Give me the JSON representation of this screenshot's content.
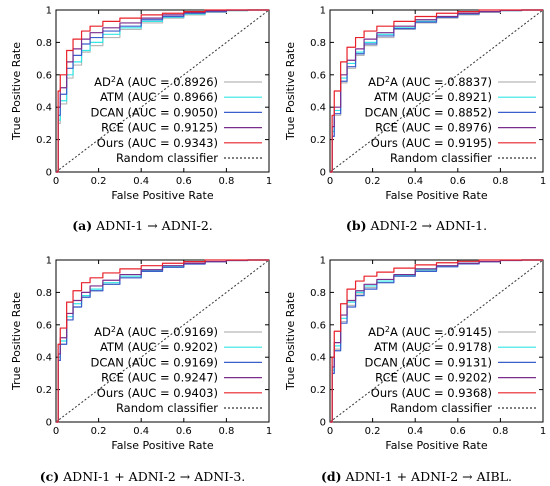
{
  "colors": {
    "AD2A": "#b8b8b8",
    "ATM": "#33e6e6",
    "DCAN": "#3a5fcd",
    "RCE": "#7b2d8b",
    "Ours": "#e8202a",
    "Random classifier": "#333333"
  },
  "chart_data": [
    {
      "type": "line",
      "xlabel": "False Positive Rate",
      "ylabel": "True Positive Rate",
      "xlim": [
        0,
        1
      ],
      "ylim": [
        0,
        1
      ],
      "xticks": [
        "0",
        "0.2",
        "0.4",
        "0.6",
        "0.8",
        "1"
      ],
      "yticks": [
        "0",
        "0.2",
        "0.4",
        "0.6",
        "0.8",
        "1"
      ],
      "caption_label": "(a)",
      "caption_text": "ADNI-1 → ADNI-2.",
      "legend": [
        "AD2A (AUC = 0.8926)",
        "ATM (AUC = 0.8966)",
        "DCAN (AUC = 0.9050)",
        "RCE (AUC = 0.9125)",
        "Ours (AUC = 0.9343)",
        "Random classifier"
      ],
      "series": [
        {
          "name": "AD2A",
          "x": [
            0,
            0.01,
            0.02,
            0.05,
            0.08,
            0.12,
            0.16,
            0.22,
            0.3,
            0.4,
            0.5,
            0.6,
            0.7,
            0.8,
            0.9,
            1
          ],
          "y": [
            0,
            0.3,
            0.42,
            0.58,
            0.66,
            0.74,
            0.78,
            0.83,
            0.88,
            0.92,
            0.95,
            0.97,
            0.985,
            0.995,
            1,
            1
          ]
        },
        {
          "name": "ATM",
          "x": [
            0,
            0.01,
            0.02,
            0.05,
            0.08,
            0.12,
            0.16,
            0.22,
            0.3,
            0.4,
            0.5,
            0.6,
            0.7,
            0.8,
            0.9,
            1
          ],
          "y": [
            0,
            0.32,
            0.44,
            0.6,
            0.68,
            0.75,
            0.8,
            0.85,
            0.89,
            0.93,
            0.955,
            0.975,
            0.99,
            0.997,
            1,
            1
          ]
        },
        {
          "name": "DCAN",
          "x": [
            0,
            0.01,
            0.02,
            0.05,
            0.08,
            0.12,
            0.16,
            0.22,
            0.3,
            0.4,
            0.5,
            0.6,
            0.7,
            0.8,
            0.9,
            1
          ],
          "y": [
            0,
            0.35,
            0.48,
            0.64,
            0.72,
            0.79,
            0.83,
            0.87,
            0.9,
            0.94,
            0.96,
            0.98,
            0.99,
            0.998,
            1,
            1
          ]
        },
        {
          "name": "RCE",
          "x": [
            0,
            0.01,
            0.02,
            0.05,
            0.08,
            0.12,
            0.16,
            0.22,
            0.3,
            0.4,
            0.5,
            0.6,
            0.7,
            0.8,
            0.9,
            1
          ],
          "y": [
            0,
            0.4,
            0.52,
            0.68,
            0.76,
            0.82,
            0.86,
            0.89,
            0.92,
            0.95,
            0.97,
            0.985,
            0.995,
            1,
            1,
            1
          ]
        },
        {
          "name": "Ours",
          "x": [
            0,
            0.01,
            0.02,
            0.05,
            0.08,
            0.12,
            0.16,
            0.22,
            0.3,
            0.4,
            0.5,
            0.6,
            0.7,
            0.8,
            0.9,
            1
          ],
          "y": [
            0,
            0.5,
            0.6,
            0.75,
            0.82,
            0.87,
            0.9,
            0.93,
            0.95,
            0.97,
            0.98,
            0.99,
            1,
            1,
            1,
            1
          ]
        }
      ]
    },
    {
      "type": "line",
      "xlabel": "False Positive Rate",
      "ylabel": "True Positive Rate",
      "xlim": [
        0,
        1
      ],
      "ylim": [
        0,
        1
      ],
      "xticks": [
        "0",
        "0.2",
        "0.4",
        "0.6",
        "0.8",
        "1"
      ],
      "yticks": [
        "0",
        "0.2",
        "0.4",
        "0.6",
        "0.8",
        "1"
      ],
      "caption_label": "(b)",
      "caption_text": "ADNI-2 → ADNI-1.",
      "legend": [
        "AD2A (AUC = 0.8837)",
        "ATM (AUC = 0.8921)",
        "DCAN (AUC = 0.8852)",
        "RCE (AUC = 0.8976)",
        "Ours (AUC = 0.9195)",
        "Random classifier"
      ],
      "series": [
        {
          "name": "AD2A",
          "x": [
            0,
            0.01,
            0.02,
            0.05,
            0.08,
            0.12,
            0.16,
            0.22,
            0.3,
            0.4,
            0.5,
            0.6,
            0.7,
            0.8,
            0.9,
            1
          ],
          "y": [
            0,
            0.22,
            0.35,
            0.55,
            0.64,
            0.72,
            0.78,
            0.83,
            0.88,
            0.92,
            0.95,
            0.97,
            0.985,
            0.995,
            1,
            1
          ]
        },
        {
          "name": "ATM",
          "x": [
            0,
            0.01,
            0.02,
            0.05,
            0.08,
            0.12,
            0.16,
            0.22,
            0.3,
            0.4,
            0.5,
            0.6,
            0.7,
            0.8,
            0.9,
            1
          ],
          "y": [
            0,
            0.25,
            0.38,
            0.58,
            0.67,
            0.74,
            0.8,
            0.85,
            0.89,
            0.93,
            0.955,
            0.975,
            0.99,
            0.997,
            1,
            1
          ]
        },
        {
          "name": "DCAN",
          "x": [
            0,
            0.01,
            0.02,
            0.05,
            0.08,
            0.12,
            0.16,
            0.22,
            0.3,
            0.4,
            0.5,
            0.6,
            0.7,
            0.8,
            0.9,
            1
          ],
          "y": [
            0,
            0.22,
            0.36,
            0.56,
            0.65,
            0.73,
            0.79,
            0.84,
            0.885,
            0.925,
            0.955,
            0.975,
            0.99,
            0.997,
            1,
            1
          ]
        },
        {
          "name": "RCE",
          "x": [
            0,
            0.01,
            0.02,
            0.05,
            0.08,
            0.12,
            0.16,
            0.22,
            0.3,
            0.4,
            0.5,
            0.6,
            0.7,
            0.8,
            0.9,
            1
          ],
          "y": [
            0,
            0.28,
            0.4,
            0.6,
            0.69,
            0.76,
            0.82,
            0.86,
            0.9,
            0.94,
            0.96,
            0.98,
            0.99,
            0.998,
            1,
            1
          ]
        },
        {
          "name": "Ours",
          "x": [
            0,
            0.01,
            0.02,
            0.05,
            0.08,
            0.12,
            0.16,
            0.22,
            0.3,
            0.4,
            0.5,
            0.6,
            0.7,
            0.8,
            0.9,
            1
          ],
          "y": [
            0,
            0.35,
            0.5,
            0.68,
            0.77,
            0.83,
            0.87,
            0.9,
            0.93,
            0.96,
            0.98,
            0.99,
            1,
            1,
            1,
            1
          ]
        }
      ]
    },
    {
      "type": "line",
      "xlabel": "False Positive Rate",
      "ylabel": "True Positive Rate",
      "xlim": [
        0,
        1
      ],
      "ylim": [
        0,
        1
      ],
      "xticks": [
        "0",
        "0.2",
        "0.4",
        "0.6",
        "0.8",
        "1"
      ],
      "yticks": [
        "0",
        "0.2",
        "0.4",
        "0.6",
        "0.8",
        "1"
      ],
      "caption_label": "(c)",
      "caption_text": "ADNI-1 + ADNI-2 → ADNI-3.",
      "legend": [
        "AD2A (AUC = 0.9169)",
        "ATM (AUC = 0.9202)",
        "DCAN (AUC = 0.9169)",
        "RCE (AUC = 0.9247)",
        "Ours (AUC = 0.9403)",
        "Random classifier"
      ],
      "series": [
        {
          "name": "AD2A",
          "x": [
            0,
            0.01,
            0.02,
            0.05,
            0.08,
            0.12,
            0.16,
            0.22,
            0.3,
            0.4,
            0.5,
            0.6,
            0.7,
            0.8,
            0.9,
            1
          ],
          "y": [
            0,
            0.38,
            0.48,
            0.63,
            0.71,
            0.77,
            0.81,
            0.85,
            0.89,
            0.93,
            0.955,
            0.975,
            0.99,
            0.997,
            1,
            1
          ]
        },
        {
          "name": "ATM",
          "x": [
            0,
            0.01,
            0.02,
            0.05,
            0.08,
            0.12,
            0.16,
            0.22,
            0.3,
            0.4,
            0.5,
            0.6,
            0.7,
            0.8,
            0.9,
            1
          ],
          "y": [
            0,
            0.4,
            0.5,
            0.65,
            0.73,
            0.78,
            0.82,
            0.86,
            0.9,
            0.935,
            0.96,
            0.978,
            0.99,
            0.998,
            1,
            1
          ]
        },
        {
          "name": "DCAN",
          "x": [
            0,
            0.01,
            0.02,
            0.05,
            0.08,
            0.12,
            0.16,
            0.22,
            0.3,
            0.4,
            0.5,
            0.6,
            0.7,
            0.8,
            0.9,
            1
          ],
          "y": [
            0,
            0.38,
            0.48,
            0.63,
            0.71,
            0.77,
            0.81,
            0.85,
            0.89,
            0.93,
            0.955,
            0.975,
            0.99,
            0.997,
            1,
            1
          ]
        },
        {
          "name": "RCE",
          "x": [
            0,
            0.01,
            0.02,
            0.05,
            0.08,
            0.12,
            0.16,
            0.22,
            0.3,
            0.4,
            0.5,
            0.6,
            0.7,
            0.8,
            0.9,
            1
          ],
          "y": [
            0,
            0.42,
            0.52,
            0.67,
            0.75,
            0.8,
            0.84,
            0.875,
            0.91,
            0.94,
            0.965,
            0.98,
            0.99,
            0.998,
            1,
            1
          ]
        },
        {
          "name": "Ours",
          "x": [
            0,
            0.01,
            0.02,
            0.05,
            0.08,
            0.12,
            0.16,
            0.22,
            0.3,
            0.4,
            0.5,
            0.6,
            0.7,
            0.8,
            0.9,
            1
          ],
          "y": [
            0,
            0.48,
            0.58,
            0.74,
            0.81,
            0.86,
            0.89,
            0.92,
            0.945,
            0.965,
            0.98,
            0.99,
            1,
            1,
            1,
            1
          ]
        }
      ]
    },
    {
      "type": "line",
      "xlabel": "False Positive Rate",
      "ylabel": "True Positive Rate",
      "xlim": [
        0,
        1
      ],
      "ylim": [
        0,
        1
      ],
      "xticks": [
        "0",
        "0.2",
        "0.4",
        "0.6",
        "0.8",
        "1"
      ],
      "yticks": [
        "0",
        "0.2",
        "0.4",
        "0.6",
        "0.8",
        "1"
      ],
      "caption_label": "(d)",
      "caption_text": "ADNI-1 + ADNI-2 → AIBL.",
      "legend": [
        "AD2A (AUC = 0.9145)",
        "ATM (AUC = 0.9178)",
        "DCAN (AUC = 0.9131)",
        "RCE (AUC = 0.9202)",
        "Ours (AUC = 0.9368)",
        "Random classifier"
      ],
      "series": [
        {
          "name": "AD2A",
          "x": [
            0,
            0.01,
            0.02,
            0.05,
            0.08,
            0.12,
            0.16,
            0.22,
            0.3,
            0.4,
            0.5,
            0.6,
            0.7,
            0.8,
            0.9,
            1
          ],
          "y": [
            0,
            0.3,
            0.45,
            0.62,
            0.72,
            0.79,
            0.83,
            0.86,
            0.9,
            0.935,
            0.96,
            0.978,
            0.99,
            0.998,
            1,
            1
          ]
        },
        {
          "name": "ATM",
          "x": [
            0,
            0.01,
            0.02,
            0.05,
            0.08,
            0.12,
            0.16,
            0.22,
            0.3,
            0.4,
            0.5,
            0.6,
            0.7,
            0.8,
            0.9,
            1
          ],
          "y": [
            0,
            0.32,
            0.47,
            0.64,
            0.74,
            0.8,
            0.84,
            0.87,
            0.905,
            0.94,
            0.962,
            0.98,
            0.99,
            0.998,
            1,
            1
          ]
        },
        {
          "name": "DCAN",
          "x": [
            0,
            0.01,
            0.02,
            0.05,
            0.08,
            0.12,
            0.16,
            0.22,
            0.3,
            0.4,
            0.5,
            0.6,
            0.7,
            0.8,
            0.9,
            1
          ],
          "y": [
            0,
            0.3,
            0.44,
            0.61,
            0.71,
            0.78,
            0.82,
            0.86,
            0.9,
            0.93,
            0.958,
            0.976,
            0.99,
            0.997,
            1,
            1
          ]
        },
        {
          "name": "RCE",
          "x": [
            0,
            0.01,
            0.02,
            0.05,
            0.08,
            0.12,
            0.16,
            0.22,
            0.3,
            0.4,
            0.5,
            0.6,
            0.7,
            0.8,
            0.9,
            1
          ],
          "y": [
            0,
            0.34,
            0.49,
            0.66,
            0.75,
            0.81,
            0.85,
            0.88,
            0.91,
            0.945,
            0.965,
            0.98,
            0.99,
            0.998,
            1,
            1
          ]
        },
        {
          "name": "Ours",
          "x": [
            0,
            0.01,
            0.02,
            0.05,
            0.08,
            0.12,
            0.16,
            0.22,
            0.3,
            0.4,
            0.5,
            0.6,
            0.7,
            0.8,
            0.9,
            1
          ],
          "y": [
            0,
            0.4,
            0.56,
            0.73,
            0.82,
            0.87,
            0.9,
            0.925,
            0.95,
            0.97,
            0.983,
            0.992,
            1,
            1,
            1,
            1
          ]
        }
      ]
    }
  ]
}
